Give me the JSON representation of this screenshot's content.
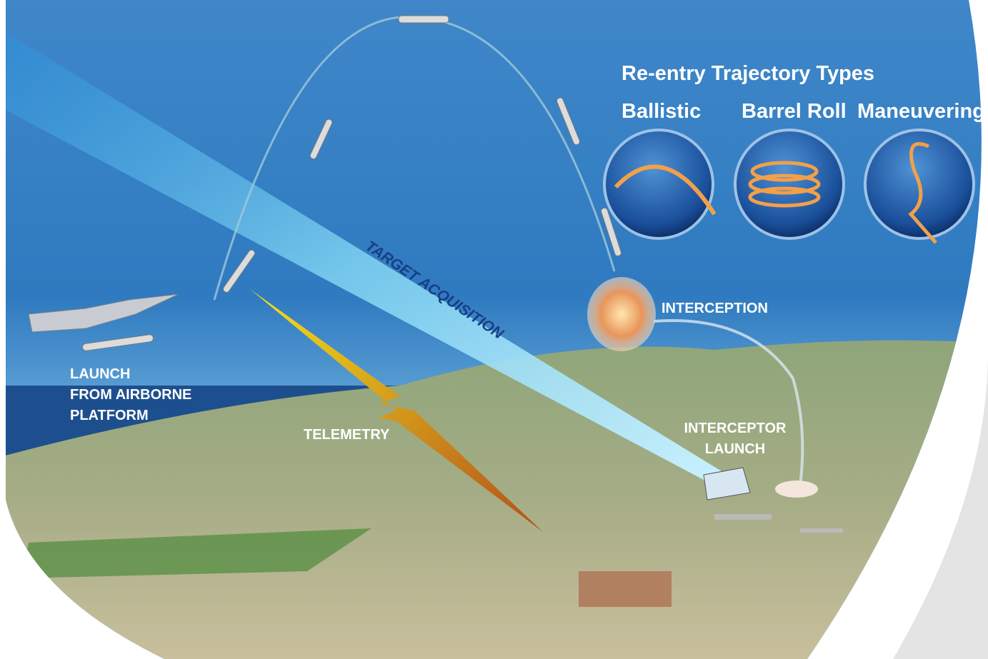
{
  "title": "Re-entry Trajectory Types",
  "trajectory_types": [
    "Ballistic",
    "Barrel Roll",
    "Maneuvering"
  ],
  "labels": {
    "target_acquisition": "TARGET ACQUISITION",
    "interception": "INTERCEPTION",
    "launch": [
      "LAUNCH",
      "FROM AIRBORNE",
      "PLATFORM"
    ],
    "telemetry": "TELEMETRY",
    "interceptor_launch": [
      "INTERCEPTOR",
      "LAUNCH"
    ]
  }
}
